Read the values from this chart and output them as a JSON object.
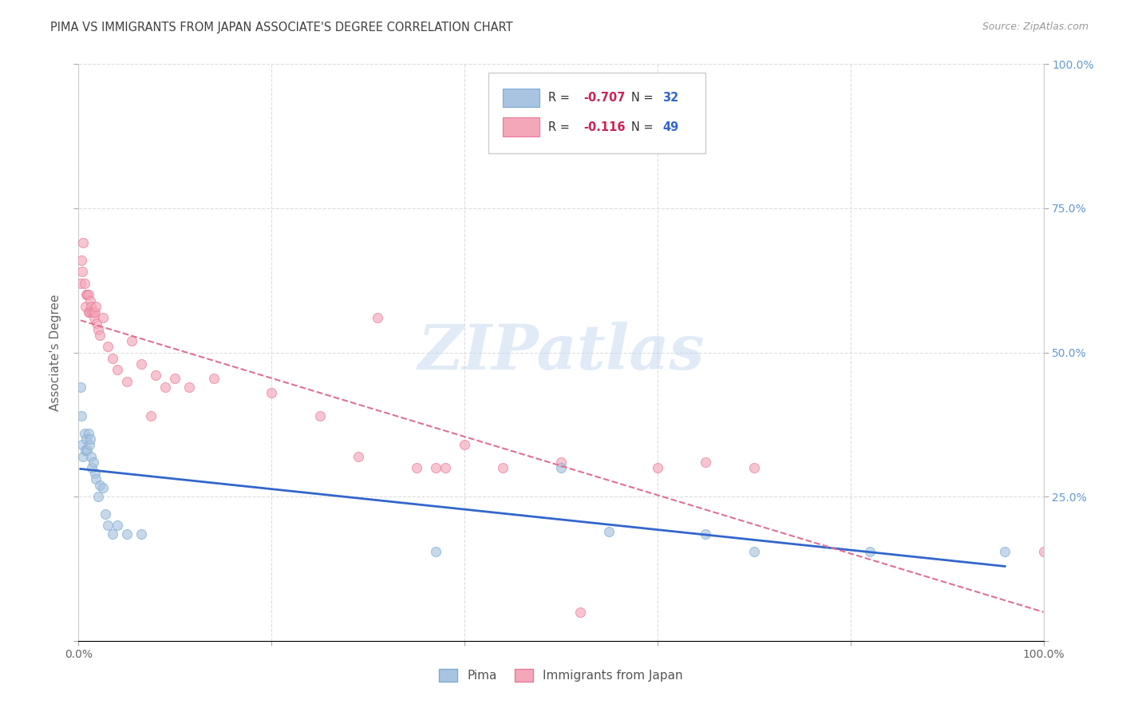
{
  "title": "PIMA VS IMMIGRANTS FROM JAPAN ASSOCIATE'S DEGREE CORRELATION CHART",
  "source": "Source: ZipAtlas.com",
  "ylabel": "Associate's Degree",
  "watermark": "ZIPatlas",
  "r1": "-0.707",
  "n1": "32",
  "r2": "-0.116",
  "n2": "49",
  "xlim": [
    0,
    1.0
  ],
  "ylim": [
    0,
    1.0
  ],
  "pima_x": [
    0.002,
    0.003,
    0.004,
    0.005,
    0.006,
    0.007,
    0.008,
    0.009,
    0.01,
    0.011,
    0.012,
    0.013,
    0.014,
    0.015,
    0.017,
    0.018,
    0.02,
    0.022,
    0.025,
    0.028,
    0.03,
    0.035,
    0.04,
    0.05,
    0.065,
    0.37,
    0.5,
    0.55,
    0.65,
    0.7,
    0.82,
    0.96
  ],
  "pima_y": [
    0.44,
    0.39,
    0.34,
    0.32,
    0.36,
    0.33,
    0.35,
    0.33,
    0.36,
    0.34,
    0.35,
    0.32,
    0.3,
    0.31,
    0.29,
    0.28,
    0.25,
    0.27,
    0.265,
    0.22,
    0.2,
    0.185,
    0.2,
    0.185,
    0.185,
    0.155,
    0.3,
    0.19,
    0.185,
    0.155,
    0.155,
    0.155
  ],
  "japan_x": [
    0.002,
    0.003,
    0.004,
    0.005,
    0.006,
    0.007,
    0.008,
    0.009,
    0.01,
    0.01,
    0.011,
    0.012,
    0.013,
    0.014,
    0.015,
    0.016,
    0.017,
    0.018,
    0.019,
    0.02,
    0.022,
    0.025,
    0.03,
    0.035,
    0.04,
    0.05,
    0.055,
    0.065,
    0.075,
    0.08,
    0.09,
    0.1,
    0.115,
    0.14,
    0.2,
    0.25,
    0.29,
    0.31,
    0.35,
    0.37,
    0.38,
    0.4,
    0.44,
    0.5,
    0.52,
    0.6,
    0.65,
    0.7,
    1.0
  ],
  "japan_y": [
    0.62,
    0.66,
    0.64,
    0.69,
    0.62,
    0.58,
    0.6,
    0.6,
    0.6,
    0.57,
    0.57,
    0.59,
    0.58,
    0.57,
    0.57,
    0.56,
    0.57,
    0.58,
    0.55,
    0.54,
    0.53,
    0.56,
    0.51,
    0.49,
    0.47,
    0.45,
    0.52,
    0.48,
    0.39,
    0.46,
    0.44,
    0.455,
    0.44,
    0.455,
    0.43,
    0.39,
    0.32,
    0.56,
    0.3,
    0.3,
    0.3,
    0.34,
    0.3,
    0.31,
    0.05,
    0.3,
    0.31,
    0.3,
    0.155
  ],
  "pima_color": "#a8c4e0",
  "japan_color": "#f4a7b9",
  "pima_edge_color": "#7dacd0",
  "japan_edge_color": "#e87a99",
  "pima_line_color": "#3366cc",
  "japan_line_color": "#e07090",
  "background_color": "#ffffff",
  "grid_color": "#dddddd",
  "title_color": "#404040",
  "axis_label_color": "#666666",
  "right_axis_color": "#6699cc",
  "marker_size": 75,
  "alpha": 0.65
}
